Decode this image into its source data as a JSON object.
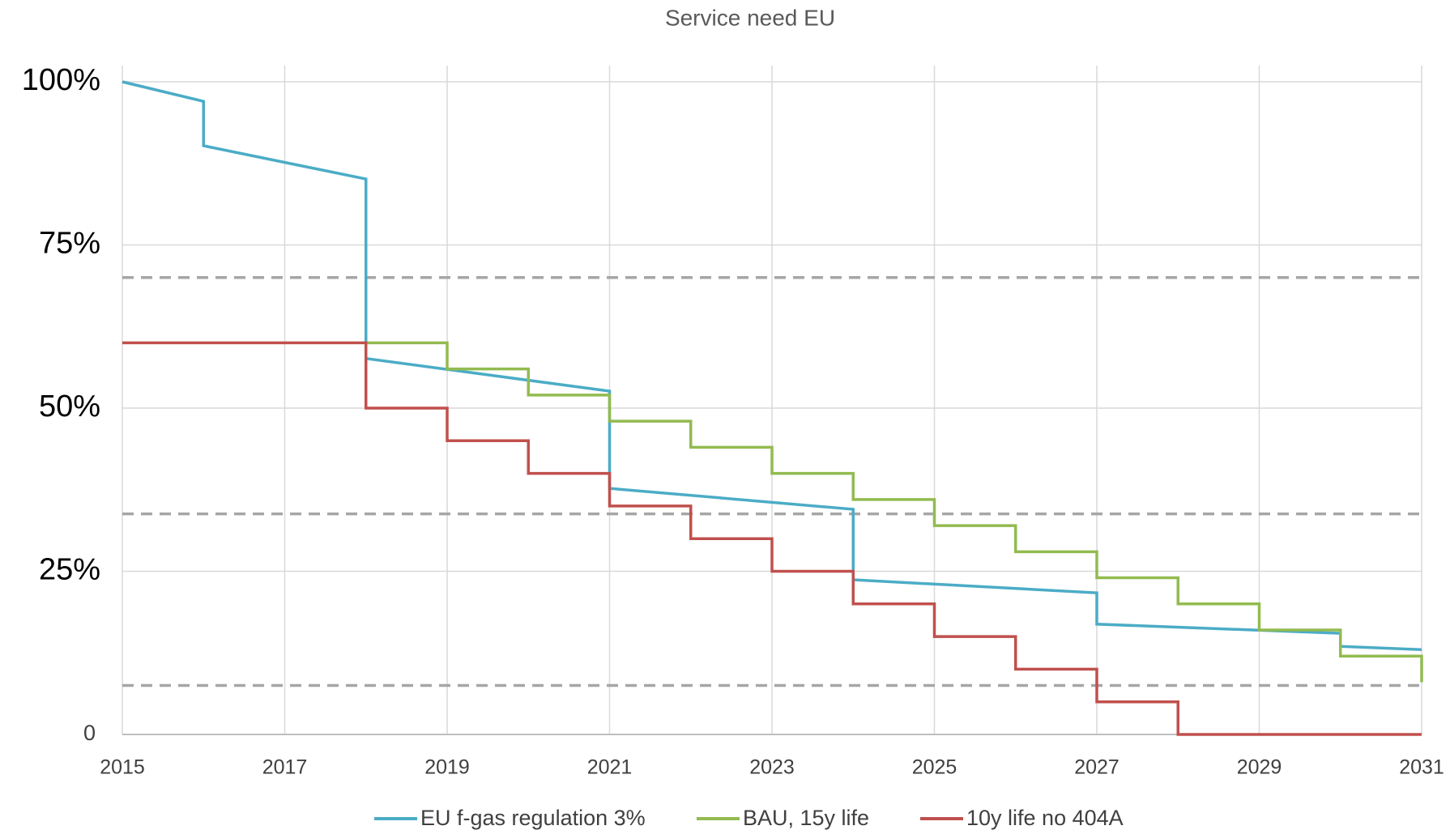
{
  "chart_data": {
    "type": "line",
    "title": "Service need EU",
    "xlim": [
      2015,
      2031
    ],
    "xticks": [
      2015,
      2017,
      2019,
      2021,
      2023,
      2025,
      2027,
      2029,
      2031
    ],
    "ylim": [
      0,
      100
    ],
    "yticks": [
      0,
      {
        "value": 25,
        "label": "25%"
      },
      {
        "value": 50,
        "label": "50%"
      },
      {
        "value": 75,
        "label": "75%"
      },
      {
        "value": 100,
        "label": "100%"
      }
    ],
    "grid": true,
    "legend": "bottom",
    "reference_lines": {
      "color": "#a6a6a6",
      "values": [
        70,
        33.8,
        7.5
      ]
    },
    "series": [
      {
        "name": "EU f-gas regulation 3%",
        "color": "#4bacc6",
        "x": [
          2015,
          2016,
          2016,
          2018,
          2018,
          2021,
          2021,
          2024,
          2024,
          2027,
          2027,
          2030,
          2030,
          2031
        ],
        "values": [
          100,
          97,
          90.2,
          85.1,
          57.6,
          52.6,
          37.7,
          34.5,
          23.7,
          21.7,
          16.9,
          15.5,
          13.5,
          13
        ]
      },
      {
        "name": "BAU, 15y life",
        "color": "#92bb50",
        "x": [
          2018,
          2019,
          2019,
          2020,
          2020,
          2021,
          2021,
          2022,
          2022,
          2023,
          2023,
          2024,
          2024,
          2025,
          2025,
          2026,
          2026,
          2027,
          2027,
          2028,
          2028,
          2029,
          2029,
          2030,
          2030,
          2031,
          2031
        ],
        "values": [
          60,
          60,
          56,
          56,
          52,
          52,
          48,
          48,
          44,
          44,
          40,
          40,
          36,
          36,
          32,
          32,
          28,
          28,
          24,
          24,
          20,
          20,
          16,
          16,
          12,
          12,
          8
        ]
      },
      {
        "name": "10y life no 404A",
        "color": "#c0504d",
        "x": [
          2015,
          2018,
          2018,
          2019,
          2019,
          2020,
          2020,
          2021,
          2021,
          2022,
          2022,
          2023,
          2023,
          2024,
          2024,
          2025,
          2025,
          2026,
          2026,
          2027,
          2027,
          2028,
          2028,
          2031
        ],
        "values": [
          60,
          60,
          50,
          50,
          45,
          45,
          40,
          40,
          35,
          35,
          30,
          30,
          25,
          25,
          20,
          20,
          15,
          15,
          10,
          10,
          5,
          5,
          0,
          0
        ]
      }
    ]
  }
}
